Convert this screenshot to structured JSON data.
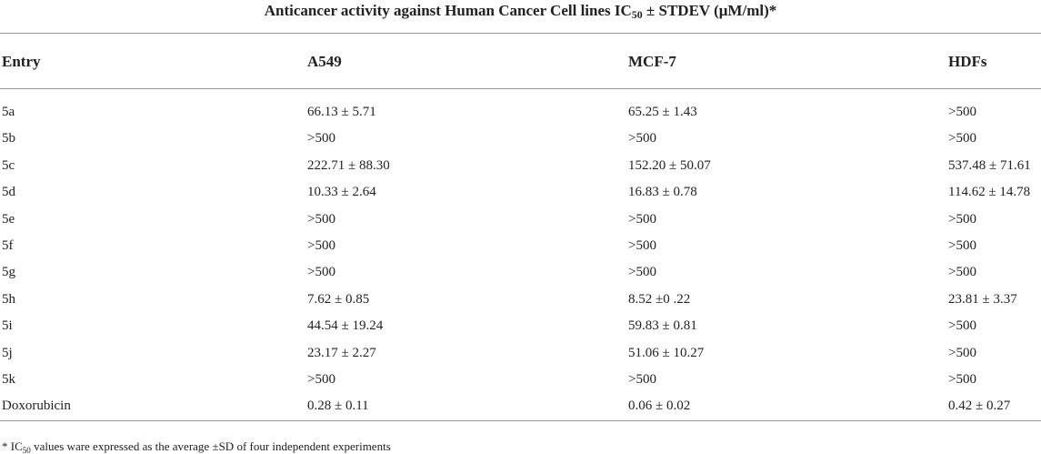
{
  "header": {
    "title": [
      "Anticancer activity against Human Cancer Cell lines IC",
      "50",
      " ± STDEV (μM/ml)*"
    ]
  },
  "table": {
    "columns": [
      "Entry",
      "A549",
      "MCF-7",
      "HDFs"
    ],
    "rows": [
      [
        "5a",
        "66.13 ± 5.71",
        "65.25 ± 1.43",
        ">500"
      ],
      [
        "5b",
        ">500",
        ">500",
        ">500"
      ],
      [
        "5c",
        "222.71 ± 88.30",
        "152.20 ± 50.07",
        "537.48 ± 71.61"
      ],
      [
        "5d",
        "10.33 ± 2.64",
        "16.83 ± 0.78",
        "114.62 ± 14.78"
      ],
      [
        "5e",
        ">500",
        ">500",
        ">500"
      ],
      [
        "5f",
        ">500",
        ">500",
        ">500"
      ],
      [
        "5g",
        ">500",
        ">500",
        ">500"
      ],
      [
        "5h",
        "7.62 ± 0.85",
        "8.52 ±0 .22",
        "23.81 ± 3.37"
      ],
      [
        "5i",
        "44.54 ± 19.24",
        "59.83 ± 0.81",
        ">500"
      ],
      [
        "5j",
        "23.17 ± 2.27",
        "51.06 ± 10.27",
        ">500"
      ],
      [
        "5k",
        ">500",
        ">500",
        ">500"
      ],
      [
        "Doxorubicin",
        "0.28 ± 0.11",
        "0.06 ± 0.02",
        "0.42 ± 0.27"
      ]
    ]
  },
  "footnote": [
    "* IC",
    "50",
    " values ware expressed as the average ±SD of four independent experiments"
  ]
}
